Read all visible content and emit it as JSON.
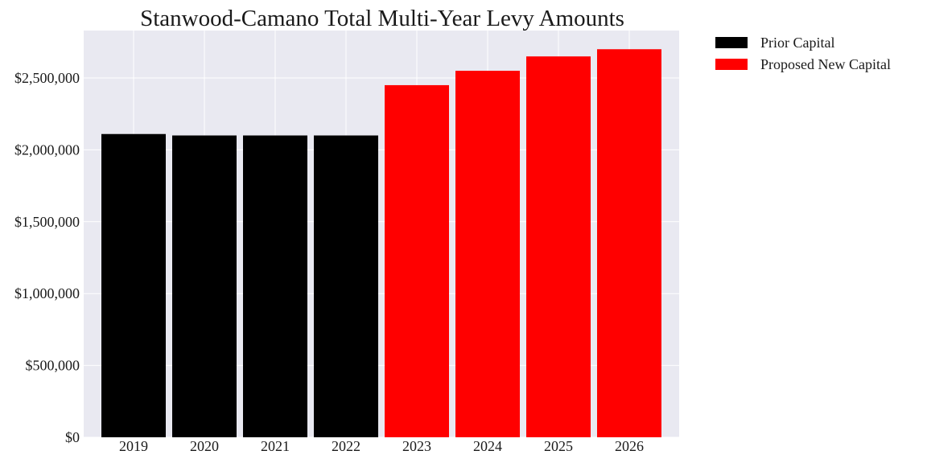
{
  "chart_data": {
    "type": "bar",
    "title": "Stanwood-Camano Total Multi-Year Levy Amounts",
    "xlabel": "",
    "ylabel": "",
    "categories": [
      "2019",
      "2020",
      "2021",
      "2022",
      "2023",
      "2024",
      "2025",
      "2026"
    ],
    "values": [
      2110000,
      2100000,
      2100000,
      2100000,
      2450000,
      2550000,
      2650000,
      2700000
    ],
    "bar_series": [
      "Prior Capital",
      "Prior Capital",
      "Prior Capital",
      "Prior Capital",
      "Proposed New Capital",
      "Proposed New Capital",
      "Proposed New Capital",
      "Proposed New Capital"
    ],
    "series": [
      {
        "name": "Prior Capital",
        "color": "#000000"
      },
      {
        "name": "Proposed New Capital",
        "color": "#ff0000"
      }
    ],
    "ylim": [
      0,
      2830000
    ],
    "yticks": [
      0,
      500000,
      1000000,
      1500000,
      2000000,
      2500000
    ],
    "ytick_labels": [
      "$0",
      "$500,000",
      "$1,000,000",
      "$1,500,000",
      "$2,000,000",
      "$2,500,000"
    ],
    "grid": true,
    "legend_position": "outside-top-right",
    "plot_background": "#e9e9f1",
    "grid_color": "#ffffff"
  }
}
